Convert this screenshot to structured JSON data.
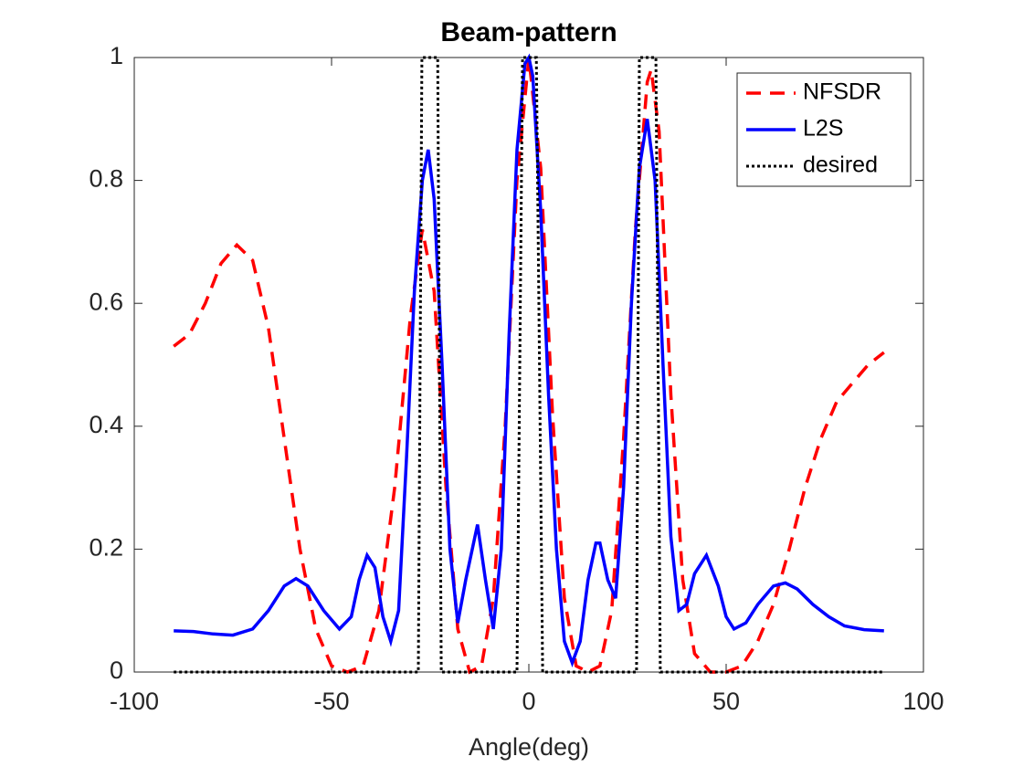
{
  "chart_data": {
    "type": "line",
    "title": "Beam-pattern",
    "xlabel": "Angle(deg)",
    "xlim": [
      -100,
      100
    ],
    "xticks": [
      -100,
      -50,
      0,
      50,
      100
    ],
    "ylim": [
      0,
      1
    ],
    "yticks": [
      0,
      0.2,
      0.4,
      0.6,
      0.8,
      1
    ],
    "grid": false,
    "legend": "northeast",
    "series": [
      {
        "name": "NFSDR",
        "color": "#ff0000",
        "dash": "dashed",
        "x": [
          -90,
          -86,
          -82,
          -78,
          -74,
          -70,
          -66,
          -62,
          -58,
          -54,
          -50,
          -46,
          -42,
          -38,
          -34,
          -30,
          -27,
          -24,
          -21,
          -18,
          -15,
          -12,
          -9,
          -6,
          -3,
          0,
          3,
          6,
          9,
          12,
          15,
          18,
          21,
          24,
          27,
          30,
          31,
          33,
          36,
          39,
          42,
          46,
          50,
          54,
          58,
          62,
          66,
          70,
          74,
          78,
          82,
          86,
          90
        ],
        "values": [
          0.53,
          0.55,
          0.6,
          0.665,
          0.695,
          0.67,
          0.56,
          0.38,
          0.2,
          0.07,
          0.01,
          0,
          0.01,
          0.1,
          0.3,
          0.58,
          0.72,
          0.62,
          0.3,
          0.07,
          0,
          0.01,
          0.12,
          0.4,
          0.8,
          1,
          0.82,
          0.42,
          0.12,
          0.01,
          0,
          0.01,
          0.1,
          0.38,
          0.72,
          0.96,
          0.98,
          0.88,
          0.45,
          0.15,
          0.03,
          0,
          0,
          0.01,
          0.05,
          0.11,
          0.2,
          0.3,
          0.38,
          0.44,
          0.47,
          0.5,
          0.52
        ]
      },
      {
        "name": "L2S",
        "color": "#0000ff",
        "dash": "solid",
        "x": [
          -90,
          -85,
          -80,
          -75,
          -70,
          -66,
          -62,
          -59,
          -56,
          -52,
          -48,
          -45,
          -43,
          -41,
          -39,
          -37,
          -35,
          -33,
          -31,
          -29,
          -27,
          -25.5,
          -24,
          -22,
          -20,
          -18,
          -16,
          -13,
          -11,
          -9,
          -7,
          -5,
          -3,
          -1,
          0,
          1,
          3,
          5,
          7,
          9,
          11,
          13,
          15,
          17,
          18,
          20,
          22,
          24,
          26,
          28,
          30,
          32,
          34,
          36,
          38,
          40,
          42,
          45,
          48,
          50,
          52,
          55,
          58,
          62,
          65,
          68,
          72,
          76,
          80,
          85,
          90
        ],
        "values": [
          0.067,
          0.066,
          0.062,
          0.06,
          0.07,
          0.1,
          0.14,
          0.152,
          0.14,
          0.1,
          0.07,
          0.09,
          0.15,
          0.19,
          0.17,
          0.09,
          0.05,
          0.1,
          0.35,
          0.62,
          0.8,
          0.85,
          0.77,
          0.5,
          0.2,
          0.08,
          0.15,
          0.24,
          0.15,
          0.07,
          0.2,
          0.55,
          0.85,
          0.99,
          1,
          0.97,
          0.75,
          0.45,
          0.2,
          0.05,
          0.015,
          0.05,
          0.15,
          0.21,
          0.21,
          0.15,
          0.12,
          0.3,
          0.6,
          0.82,
          0.9,
          0.8,
          0.5,
          0.22,
          0.1,
          0.11,
          0.16,
          0.19,
          0.14,
          0.09,
          0.07,
          0.08,
          0.11,
          0.14,
          0.145,
          0.135,
          0.11,
          0.09,
          0.075,
          0.069,
          0.067
        ]
      },
      {
        "name": "desired",
        "color": "#000000",
        "dash": "dotted",
        "x": [
          -90,
          -28,
          -27.1,
          -23.1,
          -22.2,
          -3,
          -1.6,
          1.9,
          3.5,
          27.3,
          28,
          32.2,
          33.3,
          90
        ],
        "values": [
          0,
          0,
          1,
          1,
          0,
          0,
          1,
          1,
          0,
          0,
          1,
          1,
          0,
          0
        ]
      }
    ]
  }
}
